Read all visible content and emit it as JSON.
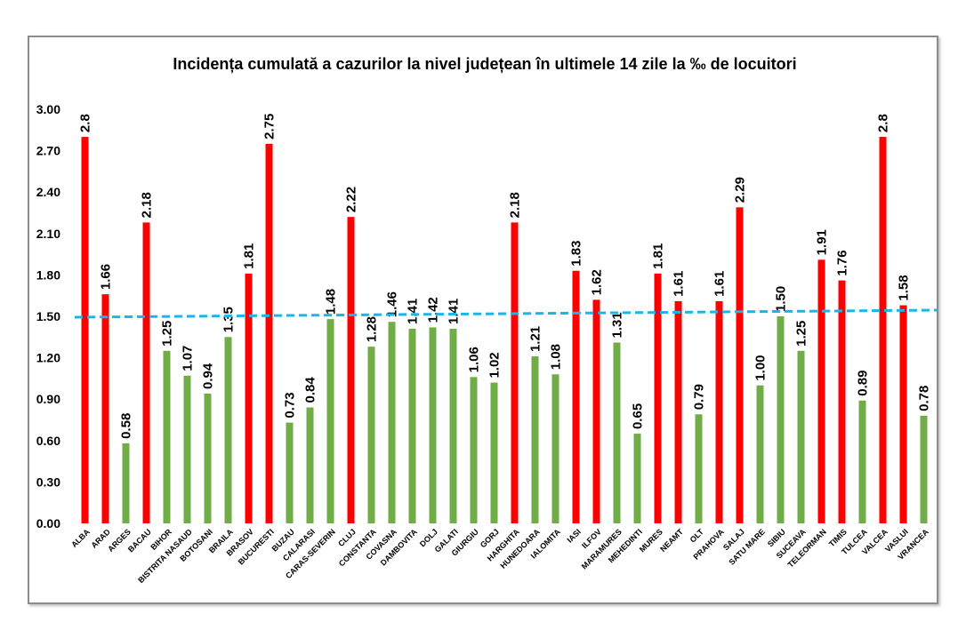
{
  "chart_data": {
    "type": "bar",
    "title": "Incidența cumulată a cazurilor la nivel județean în ultimele 14 zile la ‰ de locuitori",
    "xlabel": "",
    "ylabel": "",
    "ylim": [
      0,
      3.0
    ],
    "yticks": [
      "0.00",
      "0.30",
      "0.60",
      "0.90",
      "1.20",
      "1.50",
      "1.80",
      "2.10",
      "2.40",
      "2.70",
      "3.00"
    ],
    "grid": false,
    "threshold": {
      "value": 1.5,
      "style": "dashed",
      "color": "#1fb4e6"
    },
    "colors": {
      "above": "#ff0000",
      "below": "#70ad47"
    },
    "categories": [
      "ALBA",
      "ARAD",
      "ARGES",
      "BACAU",
      "BIHOR",
      "BISTRITA NASAUD",
      "BOTOSANI",
      "BRAILA",
      "BRASOV",
      "BUCURESTI",
      "BUZAU",
      "CALARASI",
      "CARAS-SEVERIN",
      "CLUJ",
      "CONSTANTA",
      "COVASNA",
      "DAMBOVITA",
      "DOLJ",
      "GALATI",
      "GIURGIU",
      "GORJ",
      "HARGHITA",
      "HUNEDOARA",
      "IALOMITA",
      "IASI",
      "ILFOV",
      "MARAMURES",
      "MEHEDINTI",
      "MURES",
      "NEAMT",
      "OLT",
      "PRAHOVA",
      "SALAJ",
      "SATU MARE",
      "SIBIU",
      "SUCEAVA",
      "TELEORMAN",
      "TIMIS",
      "TULCEA",
      "VALCEA",
      "VASLUI",
      "VRANCEA"
    ],
    "values": [
      2.8,
      1.66,
      0.58,
      2.18,
      1.25,
      1.07,
      0.94,
      1.35,
      1.81,
      2.75,
      0.73,
      0.84,
      1.48,
      2.22,
      1.28,
      1.46,
      1.41,
      1.42,
      1.41,
      1.06,
      1.02,
      2.18,
      1.21,
      1.08,
      1.83,
      1.62,
      1.31,
      0.65,
      1.81,
      1.61,
      0.79,
      1.61,
      2.29,
      1.0,
      1.5,
      1.25,
      1.91,
      1.76,
      0.89,
      2.8,
      1.58,
      0.78
    ],
    "labels": [
      "2.8",
      "1.66",
      "0.58",
      "2.18",
      "1.25",
      "1.07",
      "0.94",
      "1.35",
      "1.81",
      "2.75",
      "0.73",
      "0.84",
      "1.48",
      "2.22",
      "1.28",
      "1.46",
      "1.41",
      "1.42",
      "1.41",
      "1.06",
      "1.02",
      "2.18",
      "1.21",
      "1.08",
      "1.83",
      "1.62",
      "1.31",
      "0.65",
      "1.81",
      "1.61",
      "0.79",
      "1.61",
      "2.29",
      "1.00",
      "1.50",
      "1.25",
      "1.91",
      "1.76",
      "0.89",
      "2.8",
      "1.58",
      "0.78"
    ],
    "bar_colors": [
      "red",
      "red",
      "green",
      "red",
      "green",
      "green",
      "green",
      "green",
      "red",
      "red",
      "green",
      "green",
      "green",
      "red",
      "green",
      "green",
      "green",
      "green",
      "green",
      "green",
      "green",
      "red",
      "green",
      "green",
      "red",
      "red",
      "green",
      "green",
      "red",
      "red",
      "green",
      "red",
      "red",
      "green",
      "green",
      "green",
      "red",
      "red",
      "green",
      "red",
      "red",
      "green"
    ]
  }
}
